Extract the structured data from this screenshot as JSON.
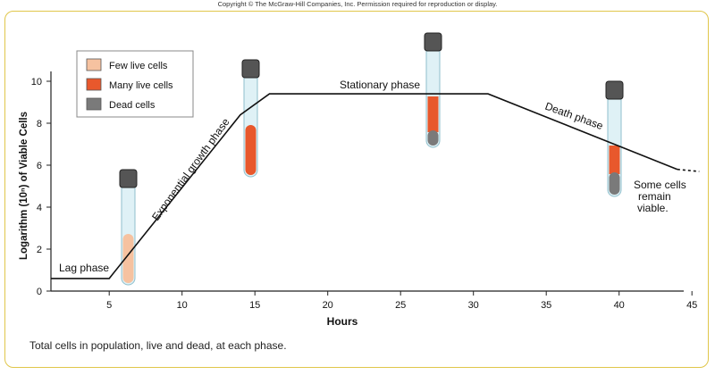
{
  "copyright": "Copyright © The McGraw-Hill Companies, Inc. Permission required for reproduction or display.",
  "caption": "Total cells in population, live and dead, at each phase.",
  "legend": [
    {
      "label": "Few live cells",
      "color": "#f6c2a0"
    },
    {
      "label": "Many live cells",
      "color": "#e8582c"
    },
    {
      "label": "Dead cells",
      "color": "#7a7a7a"
    }
  ],
  "phases": {
    "lag": "Lag phase",
    "exponential": "Exponential growth phase",
    "stationary": "Stationary phase",
    "death": "Death phase",
    "survivors_1": "Some cells",
    "survivors_2": "remain",
    "survivors_3": "viable."
  },
  "chart_data": {
    "type": "line",
    "xlabel": "Hours",
    "ylabel": "Logarithm (10ⁿ) of Viable Cells",
    "xlim": [
      1,
      45
    ],
    "ylim": [
      0,
      10.5
    ],
    "x_ticks": [
      5,
      10,
      15,
      20,
      25,
      30,
      35,
      40,
      45
    ],
    "y_ticks": [
      0,
      2,
      4,
      6,
      8,
      10
    ],
    "curve": [
      {
        "x": 1,
        "y": 0.6
      },
      {
        "x": 5,
        "y": 0.6
      },
      {
        "x": 14,
        "y": 8.4
      },
      {
        "x": 16,
        "y": 9.4
      },
      {
        "x": 31,
        "y": 9.4
      },
      {
        "x": 44,
        "y": 5.8
      }
    ],
    "curve_dotted": [
      {
        "x": 44,
        "y": 5.8
      },
      {
        "x": 45.5,
        "y": 5.7
      }
    ]
  }
}
